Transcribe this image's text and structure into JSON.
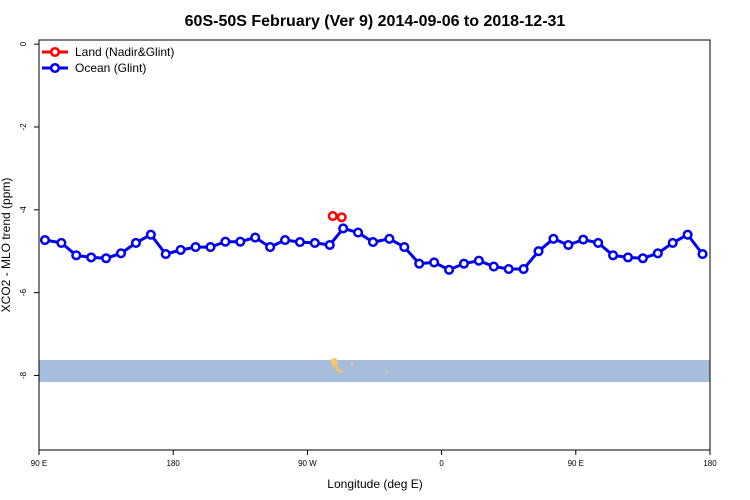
{
  "chart_data": {
    "type": "line",
    "title": "60S-50S February (Ver 9)   2014-09-06 to 2018-12-31",
    "xlabel": "Longitude (deg E)",
    "ylabel": "XCO2 - MLO trend (ppm)",
    "xlim": [
      90,
      540
    ],
    "ylim": [
      -9.8,
      0.1
    ],
    "x_ticks": [
      {
        "value": 90,
        "label": "90 E"
      },
      {
        "value": 180,
        "label": "180"
      },
      {
        "value": 270,
        "label": "90 W"
      },
      {
        "value": 360,
        "label": "0"
      },
      {
        "value": 450,
        "label": "90 E"
      },
      {
        "value": 540,
        "label": "180"
      }
    ],
    "y_ticks": [
      {
        "value": 0,
        "label": "0"
      },
      {
        "value": -2,
        "label": "-2"
      },
      {
        "value": -4,
        "label": "-4"
      },
      {
        "value": -6,
        "label": "-6"
      },
      {
        "value": -8,
        "label": "-8"
      }
    ],
    "legend_position": "top-left",
    "series": [
      {
        "name": "Land (Nadir&Glint)",
        "color": "#ff0000",
        "x": [
          287,
          293
        ],
        "y": [
          -4.15,
          -4.18
        ]
      },
      {
        "name": "Ocean (Glint)",
        "color": "#0000ee",
        "x": [
          94,
          105,
          115,
          125,
          135,
          145,
          155,
          165,
          175,
          185,
          195,
          205,
          215,
          225,
          235,
          245,
          255,
          265,
          275,
          285,
          294,
          304,
          314,
          325,
          335,
          345,
          355,
          365,
          375,
          385,
          395,
          405,
          415,
          425,
          435,
          445,
          455,
          465,
          475,
          485,
          495,
          505,
          515,
          525,
          535
        ],
        "y": [
          -4.73,
          -4.8,
          -5.1,
          -5.15,
          -5.17,
          -5.05,
          -4.8,
          -4.6,
          -5.07,
          -4.97,
          -4.9,
          -4.9,
          -4.77,
          -4.77,
          -4.67,
          -4.9,
          -4.73,
          -4.78,
          -4.8,
          -4.85,
          -4.45,
          -4.55,
          -4.78,
          -4.7,
          -4.9,
          -5.3,
          -5.27,
          -5.45,
          -5.3,
          -5.23,
          -5.37,
          -5.43,
          -5.43,
          -5.0,
          -4.7,
          -4.85,
          -4.72,
          -4.8,
          -5.1,
          -5.15,
          -5.17,
          -5.05,
          -4.8,
          -4.6,
          -5.07
        ]
      }
    ],
    "map_band": {
      "color": "#a6bddb",
      "land_color": "#f5c469"
    },
    "grid": false
  }
}
